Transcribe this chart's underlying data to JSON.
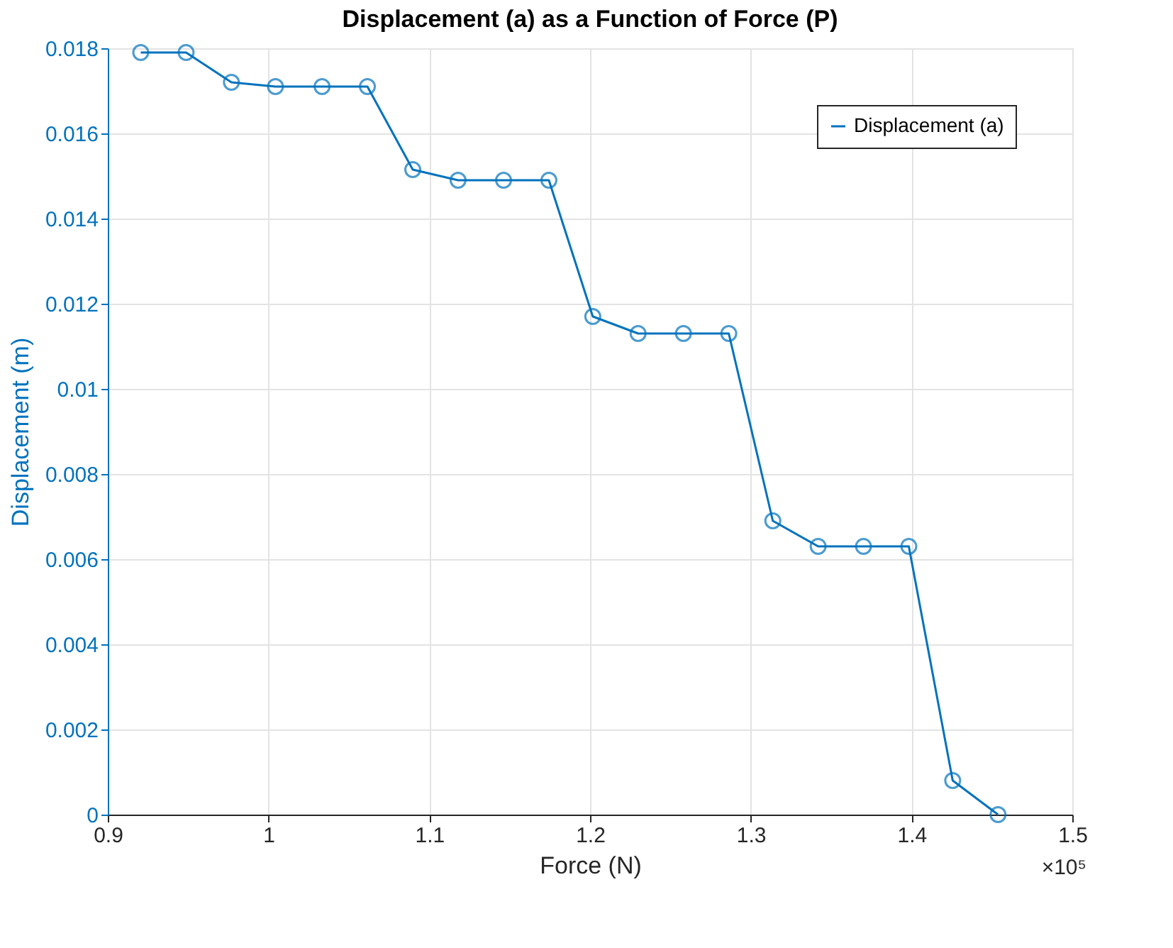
{
  "chart_data": {
    "type": "line",
    "title": "Displacement (a) as a Function of Force (P)",
    "xlabel": "Force (N)",
    "ylabel": "Displacement (m)",
    "x": [
      0.9205,
      0.9487,
      0.9769,
      1.0043,
      1.0333,
      1.0615,
      1.0897,
      1.1179,
      1.1462,
      1.1744,
      1.2017,
      1.2299,
      1.2581,
      1.2863,
      1.3137,
      1.3419,
      1.3701,
      1.3983,
      1.4256,
      1.4538
    ],
    "series": [
      {
        "name": "Displacement (a)",
        "color": "#0072bd",
        "values": [
          0.0179,
          0.0179,
          0.0172,
          0.0171,
          0.0171,
          0.0171,
          0.01515,
          0.0149,
          0.0149,
          0.0149,
          0.0117,
          0.0113,
          0.0113,
          0.0113,
          0.0069,
          0.0063,
          0.0063,
          0.0063,
          0.0008,
          0
        ]
      }
    ],
    "xlim": [
      0.9,
      1.5
    ],
    "xticks": [
      0.9,
      1,
      1.1,
      1.2,
      1.3,
      1.4,
      1.5
    ],
    "ylim": [
      0,
      0.018
    ],
    "yticks": [
      0,
      0.002,
      0.004,
      0.006,
      0.008,
      0.01,
      0.012,
      0.014,
      0.016,
      0.018
    ],
    "annotations": [
      "×10⁵"
    ],
    "grid": true,
    "legend": "top right",
    "marker": "circle",
    "line_style": "solid"
  }
}
